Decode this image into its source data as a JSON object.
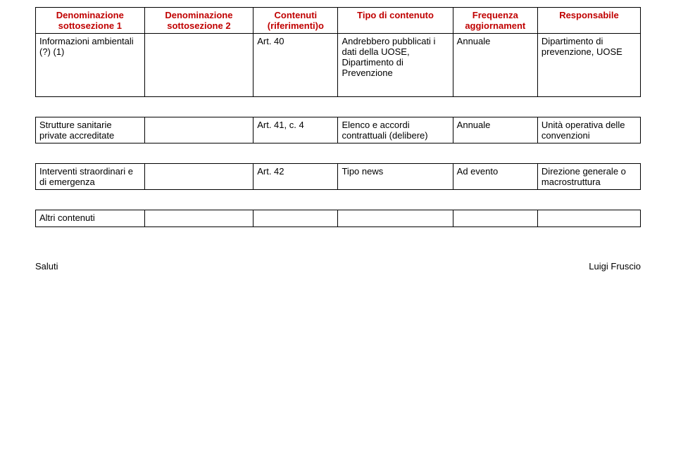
{
  "header": {
    "col1_l1": "Denominazione",
    "col1_l2": "sottosezione 1",
    "col2_l1": "Denominazione",
    "col2_l2": "sottosezione 2",
    "col3_l1": "Contenuti",
    "col3_l2": "(riferimenti)o",
    "col4_l1": "Tipo di contenuto",
    "col5_l1": "Frequenza",
    "col5_l2": "aggiornament",
    "col6_l1": "Responsabile"
  },
  "table1": {
    "row1": {
      "c1": "Informazioni ambientali (?) (1)",
      "c2": "",
      "c3": "Art. 40",
      "c4": "Andrebbero pubblicati i dati della UOSE, Dipartimento di Prevenzione",
      "c5": "Annuale",
      "c6": "Dipartimento di prevenzione, UOSE"
    }
  },
  "table2": {
    "row1": {
      "c1": "Strutture sanitarie private accreditate",
      "c2": "",
      "c3": "Art. 41, c. 4",
      "c4": "Elenco e accordi contrattuali (delibere)",
      "c5": "Annuale",
      "c6": "Unità operativa delle convenzioni"
    }
  },
  "table3": {
    "row1": {
      "c1": "Interventi straordinari e di emergenza",
      "c2": "",
      "c3": "Art. 42",
      "c4": "Tipo news",
      "c5": "Ad evento",
      "c6": "Direzione generale o macrostruttura"
    }
  },
  "table4": {
    "row1": {
      "c1": "Altri contenuti",
      "c2": "",
      "c3": "",
      "c4": "",
      "c5": "",
      "c6": ""
    }
  },
  "footer": {
    "left": "Saluti",
    "right": "Luigi Fruscio"
  }
}
